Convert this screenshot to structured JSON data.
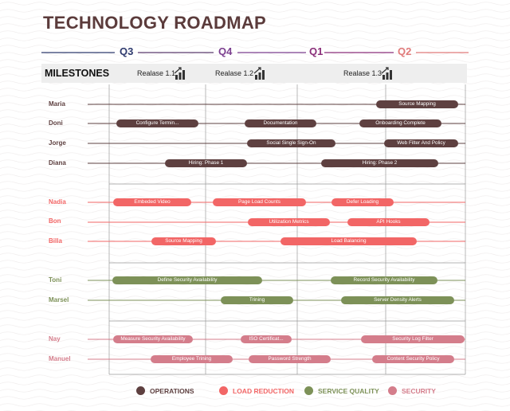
{
  "title": "TECHNOLOGY ROADMAP",
  "quarters": [
    {
      "label": "Q3",
      "color": "#2e3a6e"
    },
    {
      "label": "Q4",
      "color": "#7b3f8f"
    },
    {
      "label": "Q1",
      "color": "#8a2f7a"
    },
    {
      "label": "Q2",
      "color": "#e07a7a"
    }
  ],
  "milestones": {
    "title": "MILESTONES",
    "releases": [
      "Realase 1.1",
      "Realase 1.2",
      "Realase 1.3"
    ]
  },
  "colors": {
    "operations": "#5e4040",
    "load_reduction": "#f26666",
    "service_quality": "#7d9158",
    "security": "#d47d8b"
  },
  "rows": [
    {
      "name": "Maria",
      "category": "operations",
      "tasks": [
        "Source Mapping"
      ]
    },
    {
      "name": "Doni",
      "category": "operations",
      "tasks": [
        "Configure Termin...",
        "Documentation",
        "Onboarding Complete"
      ]
    },
    {
      "name": "Jorge",
      "category": "operations",
      "tasks": [
        "Social Single Sign-On",
        "Web Filter And Policy"
      ]
    },
    {
      "name": "Diana",
      "category": "operations",
      "tasks": [
        "Hiring: Phase 1",
        "Hiring: Phase 2"
      ]
    },
    {
      "name": "Nadia",
      "category": "load_reduction",
      "tasks": [
        "Embeded Video",
        "Page Load Counts",
        "Defer Loading"
      ]
    },
    {
      "name": "Bon",
      "category": "load_reduction",
      "tasks": [
        "Utilization Metrics",
        "API Hooks"
      ]
    },
    {
      "name": "Billa",
      "category": "load_reduction",
      "tasks": [
        "Source Mapping",
        "Load Balancing"
      ]
    },
    {
      "name": "Toni",
      "category": "service_quality",
      "tasks": [
        "Define Security Availability",
        "Record Security Availability"
      ]
    },
    {
      "name": "Marsel",
      "category": "service_quality",
      "tasks": [
        "Trining",
        "Server Density Alerts"
      ]
    },
    {
      "name": "Nay",
      "category": "security",
      "tasks": [
        "Measure Security Availability",
        "ISO Certificat...",
        "Security Log Filter"
      ]
    },
    {
      "name": "Manuel",
      "category": "security",
      "tasks": [
        "Employee Trining",
        "Password Strength",
        "Content Security Policy"
      ]
    }
  ],
  "legend": [
    {
      "label": "OPERATIONS",
      "color": "#5e4040"
    },
    {
      "label": "LOAD REDUCTION",
      "color": "#f26666"
    },
    {
      "label": "SERVICE QUALITY",
      "color": "#7d9158"
    },
    {
      "label": "SECURITY",
      "color": "#d47d8b"
    }
  ]
}
